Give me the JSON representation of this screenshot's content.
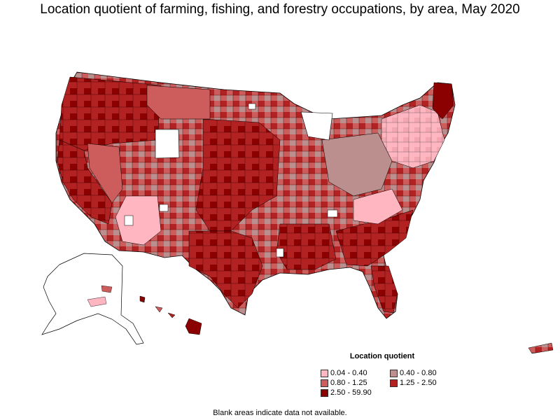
{
  "title": "Location quotient of farming, fishing, and forestry occupations, by area, May 2020",
  "legend": {
    "title": "Location quotient",
    "items": [
      {
        "label": "0.04 - 0.40",
        "color": "#ffb6c1"
      },
      {
        "label": "0.40 - 0.80",
        "color": "#bc8f8f"
      },
      {
        "label": "0.80 - 1.25",
        "color": "#cd5c5c"
      },
      {
        "label": "1.25 - 2.50",
        "color": "#b22222"
      },
      {
        "label": "2.50 - 59.90",
        "color": "#8b0000"
      }
    ]
  },
  "footnote": "Blank areas indicate data not available.",
  "colors": {
    "outline": "#000000",
    "no_data": "#ffffff"
  }
}
